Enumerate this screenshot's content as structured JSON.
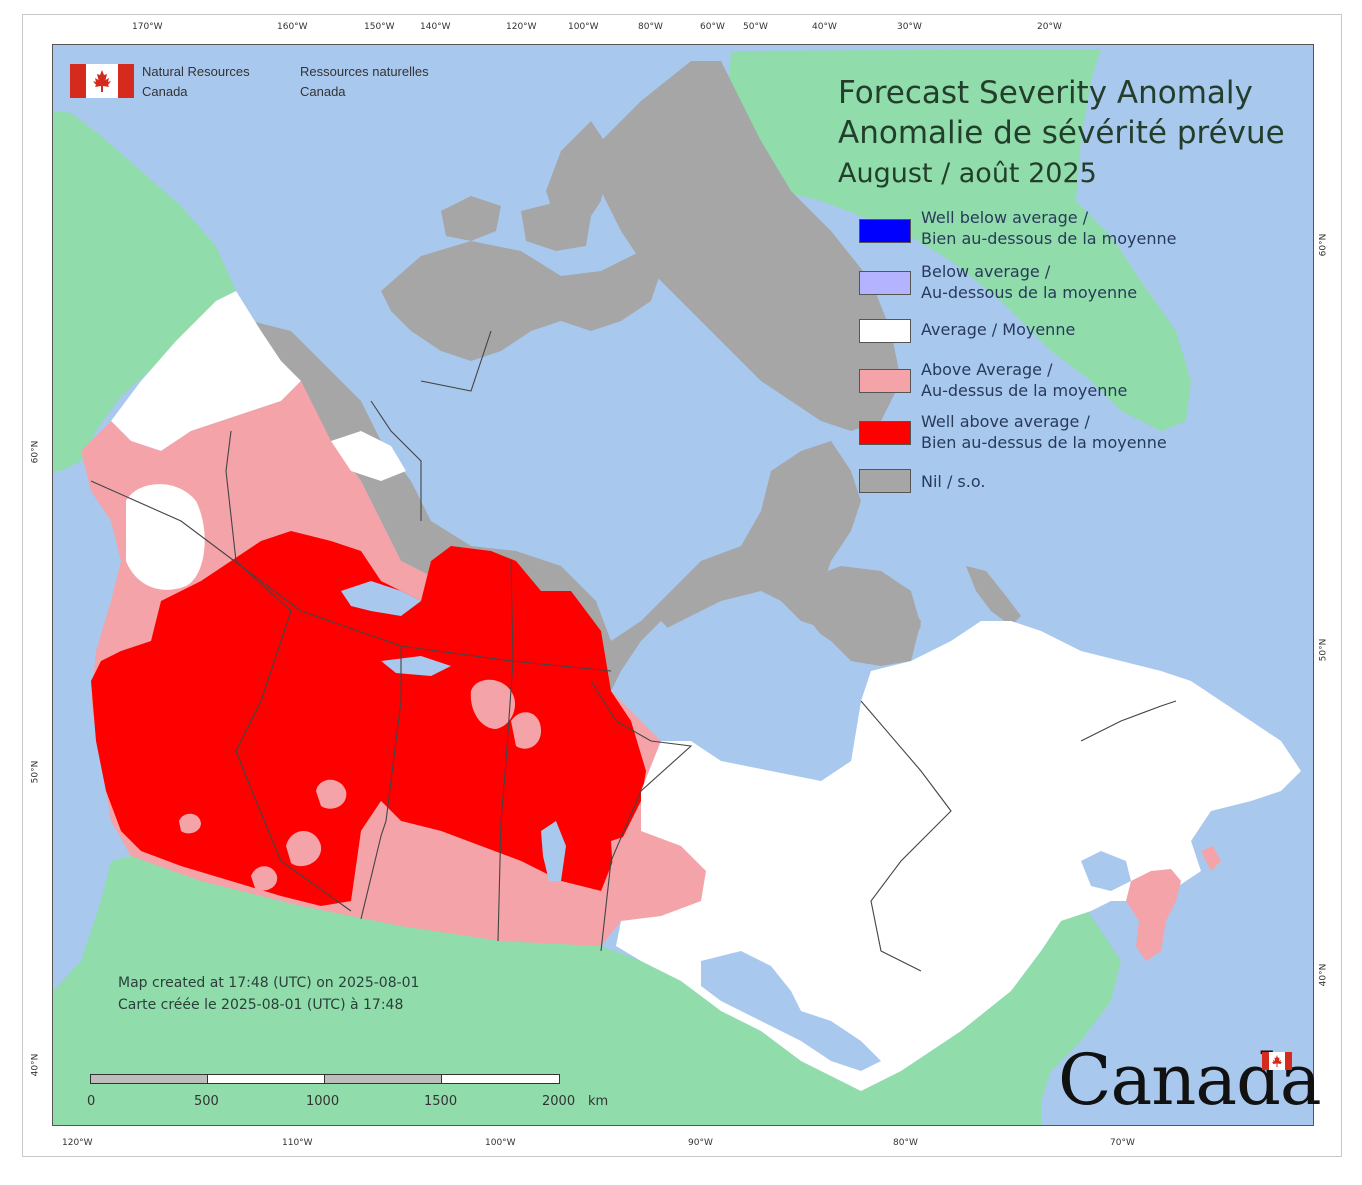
{
  "agency": {
    "en_line1": "Natural Resources",
    "en_line2": "Canada",
    "fr_line1": "Ressources naturelles",
    "fr_line2": "Canada"
  },
  "title": {
    "line1": "Forecast Severity Anomaly",
    "line2": "Anomalie de sévérité prévue",
    "period": "August / août 2025"
  },
  "legend": [
    {
      "label": "Well below average /\nBien au-dessous de la moyenne",
      "color": "#0000ff"
    },
    {
      "label": "Below average /\nAu-dessous de la moyenne",
      "color": "#b3b3ff"
    },
    {
      "label": "Average / Moyenne",
      "color": "#ffffff"
    },
    {
      "label": "Above Average /\nAu-dessus de la moyenne",
      "color": "#f4a3a8"
    },
    {
      "label": "Well above average /\nBien au-dessus de la moyenne",
      "color": "#ff0000"
    },
    {
      "label": "Nil / s.o.",
      "color": "#a6a6a6"
    }
  ],
  "created": {
    "en": "Map created at 17:48 (UTC) on 2025-08-01",
    "fr": "Carte créée le 2025-08-01 (UTC) à 17:48"
  },
  "scale": {
    "labels": [
      "0",
      "500",
      "1000",
      "1500",
      "2000"
    ],
    "unit": "km"
  },
  "wordmark": "Canada",
  "graticule": {
    "top": [
      "170°W",
      "160°W",
      "150°W",
      "140°W",
      "120°W",
      "100°W",
      "80°W",
      "60°W",
      "50°W",
      "40°W",
      "30°W",
      "20°W"
    ],
    "bottom": [
      "120°W",
      "110°W",
      "100°W",
      "90°W",
      "80°W",
      "70°W"
    ],
    "left": [
      "60°N",
      "50°N",
      "40°N"
    ],
    "right": [
      "60°N",
      "50°N",
      "40°N"
    ]
  },
  "colors": {
    "water": "#a9c8ee",
    "foreign_land": "#90dcab",
    "nil": "#a6a6a6",
    "average": "#ffffff",
    "above_average": "#f4a3a8",
    "well_above_average": "#ff0000"
  }
}
